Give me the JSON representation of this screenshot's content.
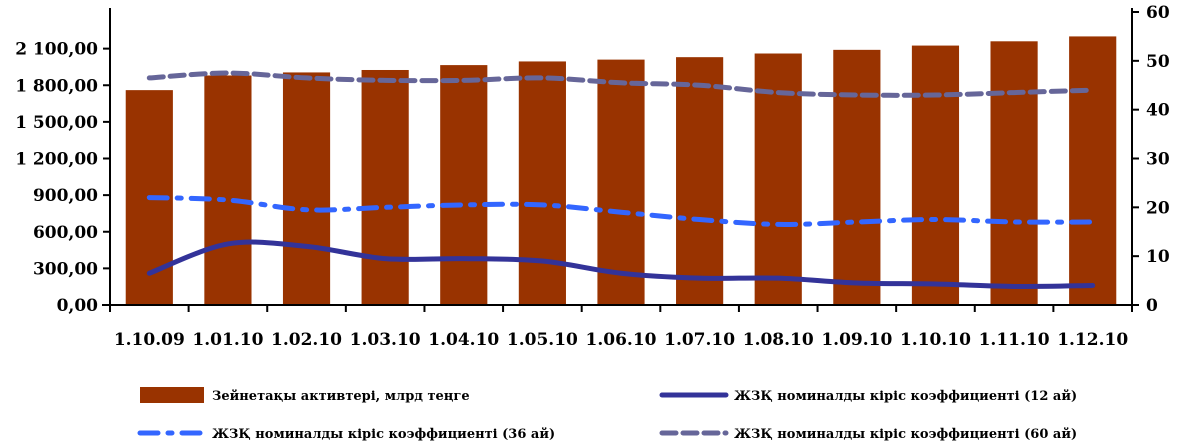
{
  "chart_data": {
    "type": "bar",
    "categories": [
      "1.10.09",
      "1.01.10",
      "1.02.10",
      "1.03.10",
      "1.04.10",
      "1.05.10",
      "1.06.10",
      "1.07.10",
      "1.08.10",
      "1.09.10",
      "1.10.10",
      "1.11.10",
      "1.12.10"
    ],
    "category_labels": [
      "1.10.09",
      "1.01.10",
      "1.02.10",
      "1.03.10",
      "1.04.10",
      "1.05.10",
      "1.06.10",
      "1.07.10",
      "1.08.10",
      "1.09.10",
      "1.10.10",
      "1.11.10",
      "1.12.10"
    ],
    "bar_series": {
      "name": "Зейнетақы активтері, млрд теңге",
      "axis": "left",
      "color": "#993300",
      "values": [
        1760,
        1880,
        1905,
        1925,
        1965,
        1995,
        2010,
        2030,
        2060,
        2090,
        2125,
        2160,
        2200
      ]
    },
    "line_series": [
      {
        "name": "ЖЗҚ номиналды кіріс коэффициенті (12 ай)",
        "axis": "right",
        "color": "#333399",
        "style": "solid",
        "values": [
          6.5,
          12.5,
          12.0,
          9.5,
          9.5,
          9.0,
          6.5,
          5.5,
          5.5,
          4.5,
          4.3,
          3.8,
          4.0
        ]
      },
      {
        "name": "ЖЗҚ номиналды кіріс коэффициенті (36 ай)",
        "axis": "right",
        "color": "#3366ff",
        "style": "dashdot",
        "values": [
          22.0,
          21.5,
          19.5,
          20.0,
          20.5,
          20.5,
          19.0,
          17.5,
          16.5,
          17.0,
          17.5,
          17.0,
          17.0
        ]
      },
      {
        "name": "ЖЗҚ номиналды кіріс коэффициенті (60 ай)",
        "axis": "right",
        "color": "#666699",
        "style": "dashed",
        "values": [
          46.5,
          47.5,
          46.5,
          46.0,
          46.0,
          46.5,
          45.5,
          45.0,
          43.5,
          43.0,
          43.0,
          43.5,
          44.0
        ]
      }
    ],
    "y_left": {
      "ylim": [
        0,
        2400
      ],
      "ticks": [
        "0,00",
        "300,00",
        "600,00",
        "900,00",
        "1 200,00",
        "1 500,00",
        "1 800,00",
        "2 100,00"
      ],
      "tick_values": [
        0,
        300,
        600,
        900,
        1200,
        1500,
        1800,
        2100
      ]
    },
    "y_right": {
      "ylim": [
        0,
        60
      ],
      "ticks": [
        "0",
        "10",
        "20",
        "30",
        "40",
        "50",
        "60"
      ],
      "tick_values": [
        0,
        10,
        20,
        30,
        40,
        50,
        60
      ]
    },
    "grid": false,
    "legend_position": "bottom"
  }
}
